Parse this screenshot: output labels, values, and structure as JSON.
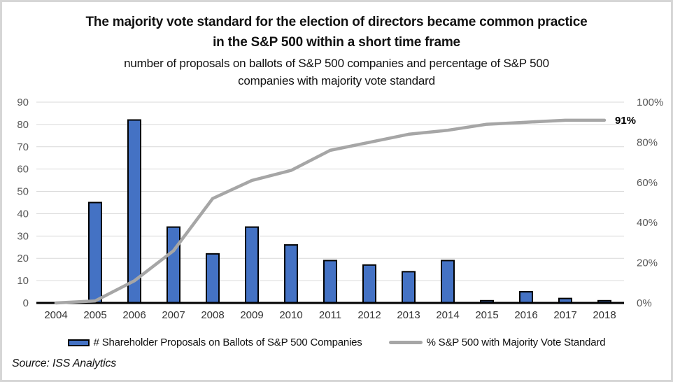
{
  "header": {
    "title": "The majority vote standard for the election of directors became common practice in the S&P 500 within a short time frame",
    "subtitle": "number of proposals on ballots of S&P 500 companies and percentage of S&P 500 companies with majority vote standard"
  },
  "chart_data": {
    "type": "combo-bar-line",
    "categories": [
      "2004",
      "2005",
      "2006",
      "2007",
      "2008",
      "2009",
      "2010",
      "2011",
      "2012",
      "2013",
      "2014",
      "2015",
      "2016",
      "2017",
      "2018"
    ],
    "series": [
      {
        "name": "# Shareholder Proposals on Ballots of S&P 500 Companies",
        "type": "bar",
        "axis": "left",
        "values": [
          0,
          45,
          82,
          34,
          22,
          34,
          26,
          19,
          17,
          14,
          19,
          1,
          5,
          2,
          1
        ],
        "color": "#4472C4",
        "border_color": "#000000"
      },
      {
        "name": "% S&P 500 with Majority Vote Standard",
        "type": "line",
        "axis": "right",
        "values": [
          0,
          1,
          11,
          26,
          52,
          61,
          66,
          76,
          80,
          84,
          86,
          89,
          90,
          91,
          91
        ],
        "color": "#A6A6A6"
      }
    ],
    "left_axis": {
      "min": 0,
      "max": 90,
      "tick_step": 10,
      "tick_labels": [
        "0",
        "10",
        "20",
        "30",
        "40",
        "50",
        "60",
        "70",
        "80",
        "90"
      ]
    },
    "right_axis": {
      "min": 0,
      "max": 100,
      "tick_step": 20,
      "tick_labels": [
        "0%",
        "20%",
        "40%",
        "60%",
        "80%",
        "100%"
      ]
    },
    "end_label": "91%",
    "grid": true,
    "legend_position": "bottom",
    "colors": {
      "gridline": "#D9D9D9",
      "axis_label": "#595959",
      "category_label": "#333333",
      "baseline": "#000000",
      "end_label": "#000000"
    }
  },
  "source": "Source: ISS Analytics"
}
